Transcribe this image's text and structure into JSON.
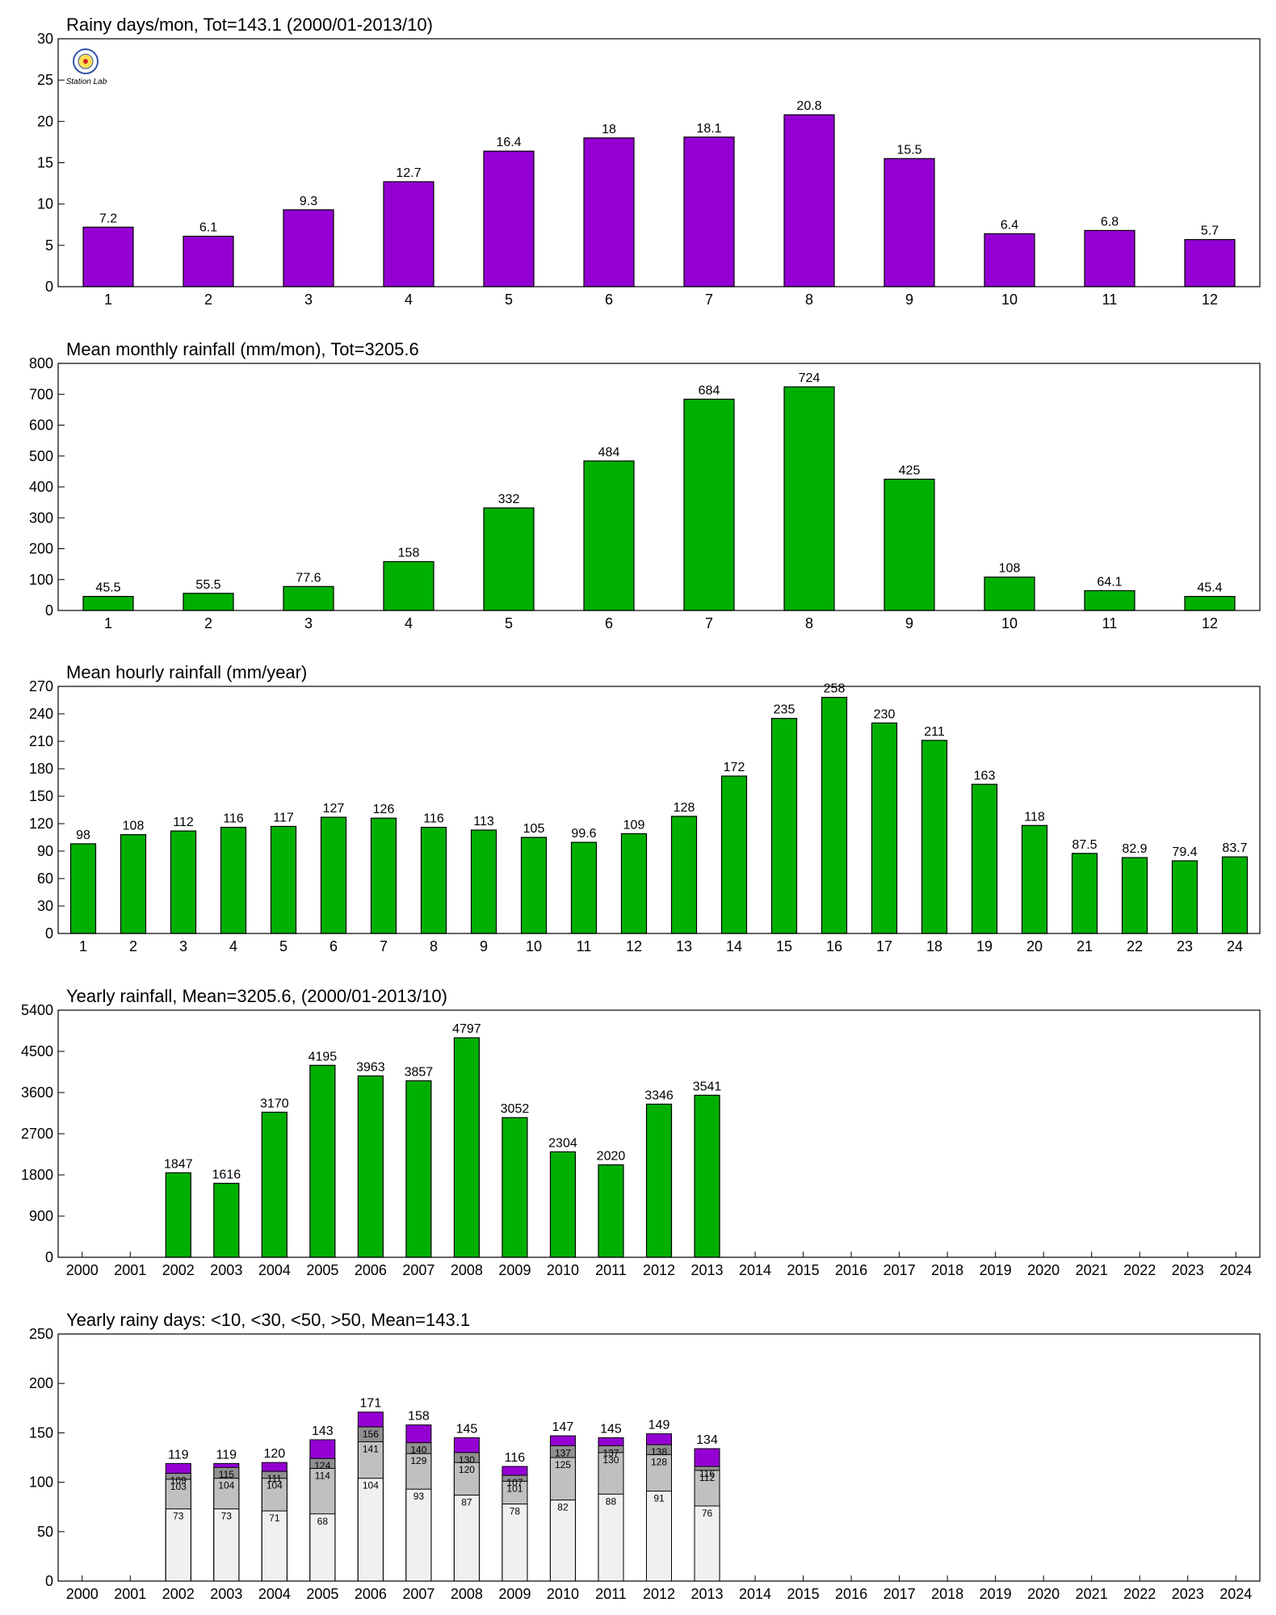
{
  "colors": {
    "purple": "#9400D3",
    "green": "#00B000",
    "light": "#F0F0F0",
    "mid": "#C0C0C0",
    "dark": "#909090",
    "grid": "#000000"
  },
  "logo": {
    "name": "station-lab-logo",
    "text": "Station Lab"
  },
  "chart_data": [
    {
      "type": "bar",
      "title": "Rainy days/mon, Tot=143.1 (2000/01-2013/10)",
      "categories": [
        "1",
        "2",
        "3",
        "4",
        "5",
        "6",
        "7",
        "8",
        "9",
        "10",
        "11",
        "12"
      ],
      "values": [
        7.2,
        6.1,
        9.3,
        12.7,
        16.4,
        18,
        18.1,
        20.8,
        15.5,
        6.4,
        6.8,
        5.7
      ],
      "value_labels": [
        "7.2",
        "6.1",
        "9.3",
        "12.7",
        "16.4",
        "18",
        "18.1",
        "20.8",
        "15.5",
        "6.4",
        "6.8",
        "5.7"
      ],
      "ylim": [
        0,
        30
      ],
      "yticks": [
        0,
        5,
        10,
        15,
        20,
        25,
        30
      ],
      "color": "#9400D3",
      "grid": false
    },
    {
      "type": "bar",
      "title": "Mean monthly rainfall (mm/mon), Tot=3205.6",
      "categories": [
        "1",
        "2",
        "3",
        "4",
        "5",
        "6",
        "7",
        "8",
        "9",
        "10",
        "11",
        "12"
      ],
      "values": [
        45.5,
        55.5,
        77.6,
        158,
        332,
        484,
        684,
        724,
        425,
        108,
        64.1,
        45.4
      ],
      "value_labels": [
        "45.5",
        "55.5",
        "77.6",
        "158",
        "332",
        "484",
        "684",
        "724",
        "425",
        "108",
        "64.1",
        "45.4"
      ],
      "ylim": [
        0,
        800
      ],
      "yticks": [
        0,
        100,
        200,
        300,
        400,
        500,
        600,
        700,
        800
      ],
      "color": "#00B000",
      "grid": false
    },
    {
      "type": "bar",
      "title": "Mean hourly rainfall (mm/year)",
      "categories": [
        "1",
        "2",
        "3",
        "4",
        "5",
        "6",
        "7",
        "8",
        "9",
        "10",
        "11",
        "12",
        "13",
        "14",
        "15",
        "16",
        "17",
        "18",
        "19",
        "20",
        "21",
        "22",
        "23",
        "24"
      ],
      "values": [
        98,
        108,
        112,
        116,
        117,
        127,
        126,
        116,
        113,
        105,
        99.6,
        109,
        128,
        172,
        235,
        258,
        230,
        211,
        163,
        118,
        87.5,
        82.9,
        79.4,
        83.7
      ],
      "value_labels": [
        "98",
        "108",
        "112",
        "116",
        "117",
        "127",
        "126",
        "116",
        "113",
        "105",
        "99.6",
        "109",
        "128",
        "172",
        "235",
        "258",
        "230",
        "211",
        "163",
        "118",
        "87.5",
        "82.9",
        "79.4",
        "83.7"
      ],
      "ylim": [
        0,
        270
      ],
      "yticks": [
        0,
        30,
        60,
        90,
        120,
        150,
        180,
        210,
        240,
        270
      ],
      "color": "#00B000",
      "grid": false
    },
    {
      "type": "bar",
      "title": "Yearly rainfall, Mean=3205.6, (2000/01-2013/10)",
      "categories": [
        "2000",
        "2001",
        "2002",
        "2003",
        "2004",
        "2005",
        "2006",
        "2007",
        "2008",
        "2009",
        "2010",
        "2011",
        "2012",
        "2013",
        "2014",
        "2015",
        "2016",
        "2017",
        "2018",
        "2019",
        "2020",
        "2021",
        "2022",
        "2023",
        "2024"
      ],
      "values": [
        null,
        null,
        1847,
        1616,
        3170,
        4195,
        3963,
        3857,
        4797,
        3052,
        2304,
        2020,
        3346,
        3541,
        null,
        null,
        null,
        null,
        null,
        null,
        null,
        null,
        null,
        null,
        null
      ],
      "value_labels": [
        "",
        "",
        "1847",
        "1616",
        "3170",
        "4195",
        "3963",
        "3857",
        "4797",
        "3052",
        "2304",
        "2020",
        "3346",
        "3541",
        "",
        "",
        "",
        "",
        "",
        "",
        "",
        "",
        "",
        "",
        ""
      ],
      "ylim": [
        0,
        5400
      ],
      "yticks": [
        0,
        900,
        1800,
        2700,
        3600,
        4500,
        5400
      ],
      "color": "#00B000",
      "grid": false
    },
    {
      "type": "bar",
      "stacked": true,
      "title": "Yearly rainy days: <10, <30, <50, >50, Mean=143.1",
      "categories": [
        "2000",
        "2001",
        "2002",
        "2003",
        "2004",
        "2005",
        "2006",
        "2007",
        "2008",
        "2009",
        "2010",
        "2011",
        "2012",
        "2013",
        "2014",
        "2015",
        "2016",
        "2017",
        "2018",
        "2019",
        "2020",
        "2021",
        "2022",
        "2023",
        "2024"
      ],
      "cumulative_series": [
        {
          "color": "#F0F0F0",
          "values": [
            null,
            null,
            73,
            73,
            71,
            68,
            104,
            93,
            87,
            78,
            82,
            88,
            91,
            76,
            null,
            null,
            null,
            null,
            null,
            null,
            null,
            null,
            null,
            null,
            null
          ]
        },
        {
          "color": "#C0C0C0",
          "values": [
            null,
            null,
            103,
            104,
            104,
            114,
            141,
            129,
            120,
            101,
            125,
            130,
            128,
            112,
            null,
            null,
            null,
            null,
            null,
            null,
            null,
            null,
            null,
            null,
            null
          ]
        },
        {
          "color": "#909090",
          "values": [
            null,
            null,
            109,
            115,
            111,
            124,
            156,
            140,
            130,
            107,
            137,
            137,
            138,
            116,
            null,
            null,
            null,
            null,
            null,
            null,
            null,
            null,
            null,
            null,
            null
          ]
        },
        {
          "color": "#9400D3",
          "values": [
            null,
            null,
            119,
            119,
            120,
            143,
            171,
            158,
            145,
            116,
            147,
            145,
            149,
            134,
            null,
            null,
            null,
            null,
            null,
            null,
            null,
            null,
            null,
            null,
            null
          ]
        }
      ],
      "inner_labels": [
        [
          "",
          "",
          "73",
          "73",
          "71",
          "68",
          "104",
          "93",
          "87",
          "78",
          "82",
          "88",
          "91",
          "76",
          "",
          "",
          "",
          "",
          "",
          "",
          "",
          "",
          "",
          "",
          ""
        ],
        [
          "",
          "",
          "103",
          "104",
          "104",
          "114",
          "141",
          "129",
          "120",
          "101",
          "125",
          "130",
          "128",
          "112",
          "",
          "",
          "",
          "",
          "",
          "",
          "",
          "",
          "",
          "",
          ""
        ],
        [
          "",
          "",
          "109",
          "115",
          "111",
          "124",
          "156",
          "140",
          "130",
          "107",
          "137",
          "137",
          "138",
          "116",
          "",
          "",
          "",
          "",
          "",
          "",
          "",
          "",
          "",
          "",
          ""
        ]
      ],
      "value_labels": [
        "",
        "",
        "119",
        "119",
        "120",
        "143",
        "171",
        "158",
        "145",
        "116",
        "147",
        "145",
        "149",
        "134",
        "",
        "",
        "",
        "",
        "",
        "",
        "",
        "",
        "",
        "",
        ""
      ],
      "ylim": [
        0,
        250
      ],
      "yticks": [
        0,
        50,
        100,
        150,
        200,
        250
      ],
      "grid": false
    }
  ]
}
